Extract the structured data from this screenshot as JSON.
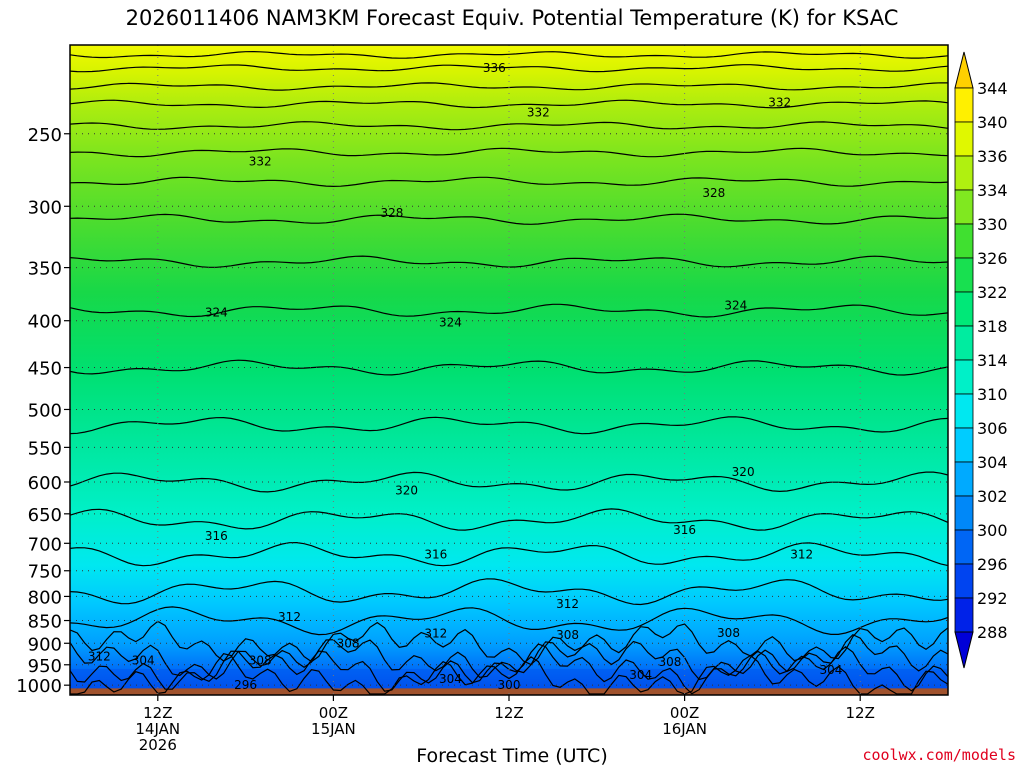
{
  "chart_data": {
    "type": "contour",
    "title": "2026011406 NAM3KM Forecast Equiv. Potential Temperature (K) for KSAC",
    "xlabel": "Forecast Time (UTC)",
    "ylabel": "",
    "credit": "coolwx.com/models",
    "y_axis": {
      "scale": "log-pressure",
      "ticks": [
        250,
        300,
        350,
        400,
        450,
        500,
        550,
        600,
        650,
        700,
        750,
        800,
        850,
        900,
        950,
        1000
      ],
      "range": [
        200,
        1025
      ]
    },
    "x_axis": {
      "range_hours": [
        0,
        60
      ],
      "ticks": [
        {
          "hour": 6,
          "lines": [
            "12Z",
            "14JAN",
            "2026"
          ]
        },
        {
          "hour": 18,
          "lines": [
            "00Z",
            "15JAN"
          ]
        },
        {
          "hour": 30,
          "lines": [
            "12Z"
          ]
        },
        {
          "hour": 42,
          "lines": [
            "00Z",
            "16JAN"
          ]
        },
        {
          "hour": 54,
          "lines": [
            "12Z"
          ]
        }
      ]
    },
    "colorbar": {
      "levels": [
        288,
        292,
        296,
        300,
        302,
        304,
        306,
        310,
        314,
        318,
        322,
        326,
        330,
        334,
        336,
        340,
        344
      ],
      "colors": [
        "#0000d8",
        "#0022e8",
        "#0044f0",
        "#0066f5",
        "#0088f8",
        "#00aaff",
        "#00ccff",
        "#00e8f0",
        "#00f0c8",
        "#00eca0",
        "#00e878",
        "#18e050",
        "#40e030",
        "#80e820",
        "#b0f010",
        "#e0f800",
        "#fff000",
        "#ffd000"
      ]
    },
    "contour_labels": [
      {
        "value": "336",
        "hour": 29,
        "p": 212
      },
      {
        "value": "332",
        "hour": 32,
        "p": 237
      },
      {
        "value": "332",
        "hour": 48.5,
        "p": 231
      },
      {
        "value": "332",
        "hour": 13,
        "p": 268
      },
      {
        "value": "328",
        "hour": 22,
        "p": 305
      },
      {
        "value": "328",
        "hour": 44,
        "p": 290
      },
      {
        "value": "324",
        "hour": 10,
        "p": 392
      },
      {
        "value": "324",
        "hour": 26,
        "p": 402
      },
      {
        "value": "324",
        "hour": 45.5,
        "p": 385
      },
      {
        "value": "320",
        "hour": 23,
        "p": 613
      },
      {
        "value": "320",
        "hour": 46,
        "p": 585
      },
      {
        "value": "316",
        "hour": 10,
        "p": 687
      },
      {
        "value": "316",
        "hour": 25,
        "p": 720
      },
      {
        "value": "316",
        "hour": 42,
        "p": 677
      },
      {
        "value": "312",
        "hour": 50,
        "p": 720
      },
      {
        "value": "312",
        "hour": 34,
        "p": 815
      },
      {
        "value": "312",
        "hour": 15,
        "p": 843
      },
      {
        "value": "312",
        "hour": 25,
        "p": 878
      },
      {
        "value": "312",
        "hour": 2,
        "p": 930
      },
      {
        "value": "308",
        "hour": 19,
        "p": 900
      },
      {
        "value": "308",
        "hour": 34,
        "p": 882
      },
      {
        "value": "308",
        "hour": 45,
        "p": 877
      },
      {
        "value": "308",
        "hour": 41,
        "p": 943
      },
      {
        "value": "308",
        "hour": 13,
        "p": 940
      },
      {
        "value": "304",
        "hour": 5,
        "p": 940
      },
      {
        "value": "304",
        "hour": 26,
        "p": 985
      },
      {
        "value": "304",
        "hour": 39,
        "p": 975
      },
      {
        "value": "304",
        "hour": 52,
        "p": 962
      },
      {
        "value": "300",
        "hour": 30,
        "p": 1000
      },
      {
        "value": "296",
        "hour": 12,
        "p": 1000
      }
    ]
  }
}
